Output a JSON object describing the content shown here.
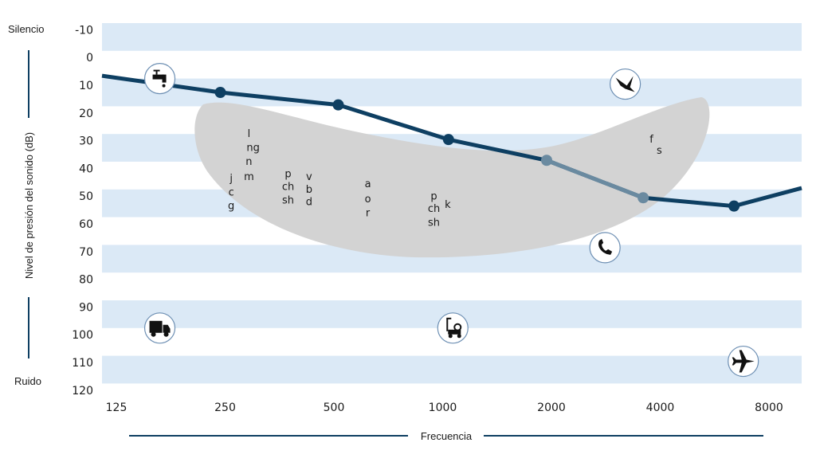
{
  "chart_data": {
    "type": "line",
    "title": "",
    "xlabel": "Frecuencia",
    "ylabel": "Nivel de presión del sonido (dB)",
    "top_label": "Silencio",
    "bottom_label": "Ruido",
    "x_ticks": [
      "125",
      "250",
      "500",
      "1000",
      "2000",
      "4000",
      "8000"
    ],
    "y_ticks": [
      "-10",
      "0",
      "10",
      "20",
      "30",
      "40",
      "50",
      "60",
      "70",
      "80",
      "90",
      "100",
      "110",
      "120"
    ],
    "ylim": [
      -10,
      120
    ],
    "y_inverted": true,
    "x_scale": "log2",
    "grid": "alternating horizontal bands",
    "series": [
      {
        "color": "#0e3f62",
        "points": [
          {
            "x": 125,
            "y": 4,
            "marker": false
          },
          {
            "x": 250,
            "y": 10,
            "marker": true
          },
          {
            "x": 530,
            "y": 14.5,
            "marker": true
          },
          {
            "x": 1070,
            "y": 27,
            "marker": true
          },
          {
            "x": 2000,
            "y": 34.5,
            "marker": true
          },
          {
            "x": 3700,
            "y": 48,
            "marker": true
          },
          {
            "x": 6600,
            "y": 51,
            "marker": true
          },
          {
            "x": 8000,
            "y": 44.5,
            "marker": false
          }
        ]
      }
    ],
    "speech_banana": {
      "color": "#d3d3d3",
      "phonemes": [
        {
          "text": "l",
          "x": 300,
          "y": 25
        },
        {
          "text": "ng",
          "x": 308,
          "y": 30
        },
        {
          "text": "n",
          "x": 300,
          "y": 35
        },
        {
          "text": "m",
          "x": 300,
          "y": 40.5
        },
        {
          "text": "j",
          "x": 268,
          "y": 41
        },
        {
          "text": "c",
          "x": 268,
          "y": 46
        },
        {
          "text": "g",
          "x": 268,
          "y": 51
        },
        {
          "text": "p",
          "x": 385,
          "y": 39.5
        },
        {
          "text": "ch",
          "x": 385,
          "y": 44
        },
        {
          "text": "sh",
          "x": 385,
          "y": 49
        },
        {
          "text": "v",
          "x": 440,
          "y": 40.5
        },
        {
          "text": "b",
          "x": 440,
          "y": 45
        },
        {
          "text": "d",
          "x": 440,
          "y": 49.5
        },
        {
          "text": "a",
          "x": 640,
          "y": 43
        },
        {
          "text": "o",
          "x": 640,
          "y": 48.5
        },
        {
          "text": "r",
          "x": 640,
          "y": 53.5
        },
        {
          "text": "p",
          "x": 975,
          "y": 47.5
        },
        {
          "text": "ch",
          "x": 975,
          "y": 52
        },
        {
          "text": "sh",
          "x": 975,
          "y": 57
        },
        {
          "text": "k",
          "x": 1065,
          "y": 50.5
        },
        {
          "text": "f",
          "x": 3900,
          "y": 27
        },
        {
          "text": "s",
          "x": 4100,
          "y": 31
        }
      ]
    },
    "icons": [
      {
        "name": "faucet-icon",
        "x": 170,
        "y": 5
      },
      {
        "name": "hummingbird-icon",
        "x": 3300,
        "y": 7
      },
      {
        "name": "telephone-icon",
        "x": 2900,
        "y": 66
      },
      {
        "name": "truck-icon",
        "x": 170,
        "y": 95
      },
      {
        "name": "lawnmower-icon",
        "x": 1100,
        "y": 95
      },
      {
        "name": "airplane-icon",
        "x": 7000,
        "y": 107
      }
    ]
  }
}
